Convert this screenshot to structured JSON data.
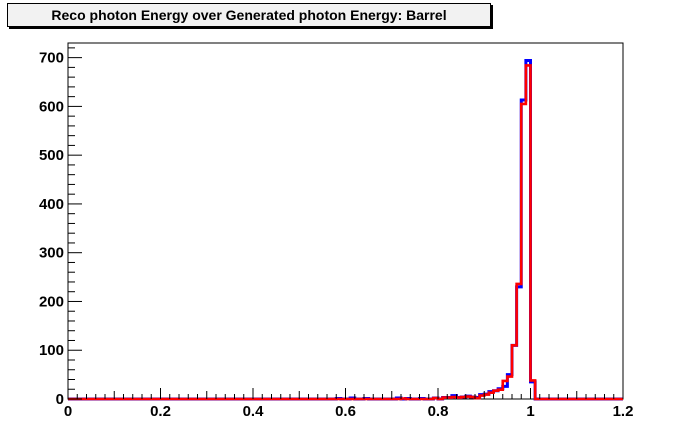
{
  "chart_data": {
    "type": "histogram",
    "title": "Reco photon Energy over Generated photon Energy: Barrel",
    "xlabel": "",
    "ylabel": "",
    "xlim": [
      0,
      1.2
    ],
    "ylim": [
      0,
      730
    ],
    "bin_width": 0.01,
    "x_ticks": [
      "0",
      "0.2",
      "0.4",
      "0.6",
      "0.8",
      "1",
      "1.2"
    ],
    "y_ticks": [
      "0",
      "100",
      "200",
      "300",
      "400",
      "500",
      "600",
      "700"
    ],
    "grid": false,
    "series": [
      {
        "color": "#0000ff",
        "bins": [
          {
            "x": 0.58,
            "y": 1
          },
          {
            "x": 0.61,
            "y": 2
          },
          {
            "x": 0.64,
            "y": 1
          },
          {
            "x": 0.71,
            "y": 2
          },
          {
            "x": 0.73,
            "y": 1
          },
          {
            "x": 0.76,
            "y": 1
          },
          {
            "x": 0.79,
            "y": 2
          },
          {
            "x": 0.81,
            "y": 3
          },
          {
            "x": 0.82,
            "y": 3
          },
          {
            "x": 0.83,
            "y": 7
          },
          {
            "x": 0.84,
            "y": 3
          },
          {
            "x": 0.85,
            "y": 4
          },
          {
            "x": 0.86,
            "y": 6
          },
          {
            "x": 0.87,
            "y": 4
          },
          {
            "x": 0.88,
            "y": 3
          },
          {
            "x": 0.89,
            "y": 9
          },
          {
            "x": 0.9,
            "y": 10
          },
          {
            "x": 0.91,
            "y": 15
          },
          {
            "x": 0.92,
            "y": 17
          },
          {
            "x": 0.93,
            "y": 21
          },
          {
            "x": 0.94,
            "y": 26
          },
          {
            "x": 0.95,
            "y": 50
          },
          {
            "x": 0.96,
            "y": 110
          },
          {
            "x": 0.97,
            "y": 230
          },
          {
            "x": 0.98,
            "y": 613
          },
          {
            "x": 0.99,
            "y": 694
          },
          {
            "x": 1.0,
            "y": 35
          }
        ]
      },
      {
        "color": "#ff0000",
        "bins": [
          {
            "x": 0.72,
            "y": 1
          },
          {
            "x": 0.79,
            "y": 2
          },
          {
            "x": 0.81,
            "y": 3
          },
          {
            "x": 0.82,
            "y": 3
          },
          {
            "x": 0.83,
            "y": 4
          },
          {
            "x": 0.84,
            "y": 3
          },
          {
            "x": 0.85,
            "y": 4
          },
          {
            "x": 0.86,
            "y": 5
          },
          {
            "x": 0.87,
            "y": 4
          },
          {
            "x": 0.88,
            "y": 2
          },
          {
            "x": 0.89,
            "y": 7
          },
          {
            "x": 0.9,
            "y": 9
          },
          {
            "x": 0.91,
            "y": 13
          },
          {
            "x": 0.92,
            "y": 17
          },
          {
            "x": 0.93,
            "y": 19
          },
          {
            "x": 0.94,
            "y": 37
          },
          {
            "x": 0.95,
            "y": 46
          },
          {
            "x": 0.96,
            "y": 110
          },
          {
            "x": 0.97,
            "y": 236
          },
          {
            "x": 0.98,
            "y": 605
          },
          {
            "x": 0.99,
            "y": 684
          },
          {
            "x": 1.0,
            "y": 38
          }
        ]
      }
    ]
  }
}
